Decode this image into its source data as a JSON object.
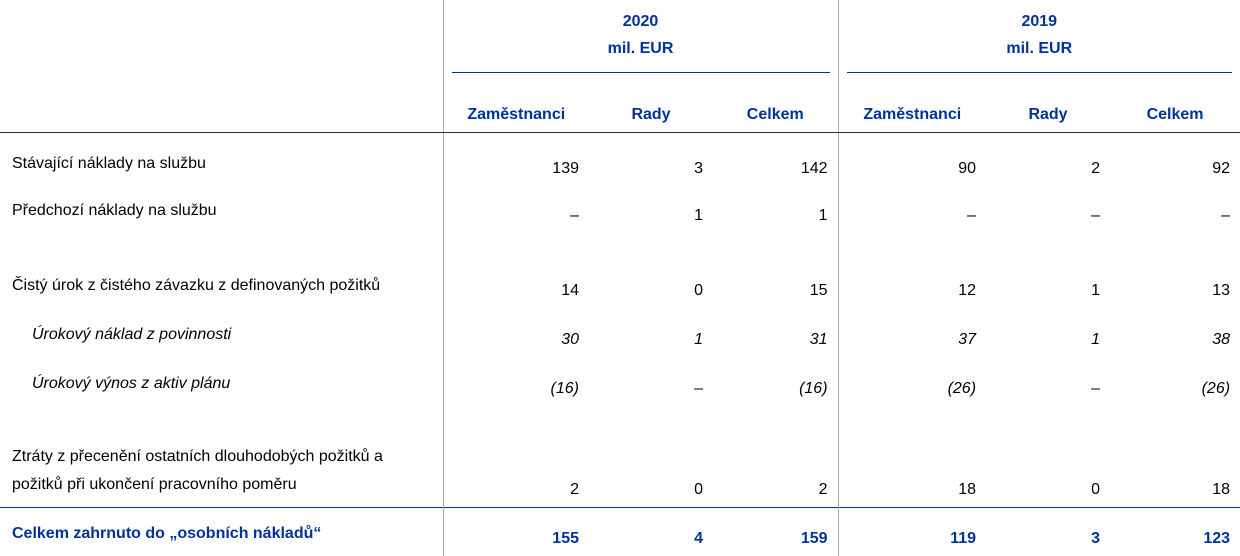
{
  "header": {
    "groups": [
      {
        "year": "2020",
        "unit": "mil. EUR"
      },
      {
        "year": "2019",
        "unit": "mil. EUR"
      }
    ],
    "columns": [
      "Zaměstnanci",
      "Rady",
      "Celkem",
      "Zaměstnanci",
      "Rady",
      "Celkem"
    ]
  },
  "rows": [
    {
      "label": "Stávající náklady na službu",
      "values": [
        "139",
        "3",
        "142",
        "90",
        "2",
        "92"
      ]
    },
    {
      "label": "Předchozí náklady na službu",
      "values": [
        "–",
        "1",
        "1",
        "–",
        "–",
        "–"
      ]
    },
    {
      "label": "Čistý úrok z čistého závazku z definovaných požitků",
      "values": [
        "14",
        "0",
        "15",
        "12",
        "1",
        "13"
      ]
    },
    {
      "label": "Úrokový náklad z povinnosti",
      "values": [
        "30",
        "1",
        "31",
        "37",
        "1",
        "38"
      ],
      "italic": true
    },
    {
      "label": "Úrokový výnos z aktiv plánu",
      "values": [
        "(16)",
        "–",
        "(16)",
        "(26)",
        "–",
        "(26)"
      ],
      "italic": true
    },
    {
      "label": "Ztráty z přecenění ostatních dlouhodobých požitků a požitků při ukončení pracovního poměru",
      "values": [
        "2",
        "0",
        "2",
        "18",
        "0",
        "18"
      ]
    }
  ],
  "total": {
    "label": "Celkem zahrnuto do „osobních nákladů“",
    "values": [
      "155",
      "4",
      "159",
      "119",
      "3",
      "123"
    ]
  }
}
